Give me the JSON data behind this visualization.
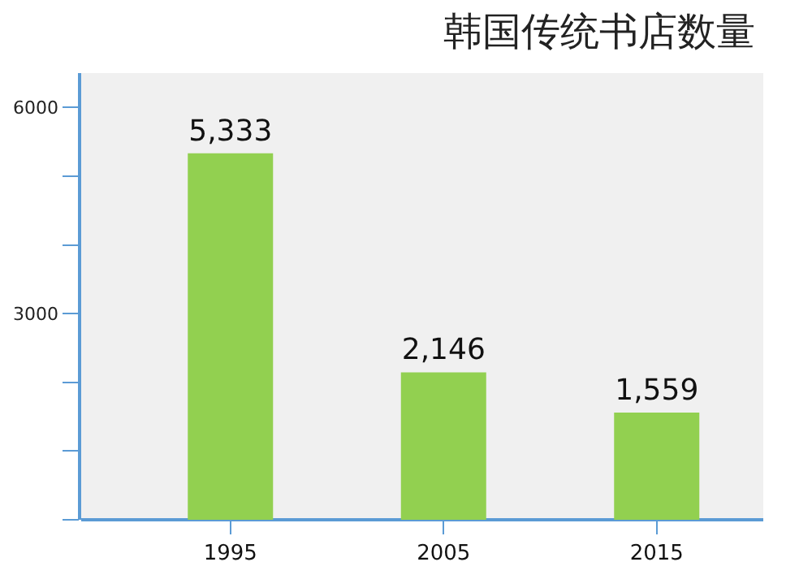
{
  "chart_data": {
    "type": "bar",
    "title": "韩国传统书店数量",
    "categories": [
      "1995",
      "2005",
      "2015"
    ],
    "values": [
      5333,
      2146,
      1559
    ],
    "value_labels": [
      "5,333",
      "2,146",
      "1,559"
    ],
    "color": "#92d050",
    "ylim": [
      0,
      6500
    ],
    "yticks": [
      {
        "value": 0,
        "label": null
      },
      {
        "value": 1000,
        "label": null
      },
      {
        "value": 2000,
        "label": null
      },
      3000,
      {
        "value": 4000,
        "label": null
      },
      {
        "value": 5000,
        "label": null
      },
      6000
    ],
    "grid": false,
    "legend": false
  }
}
